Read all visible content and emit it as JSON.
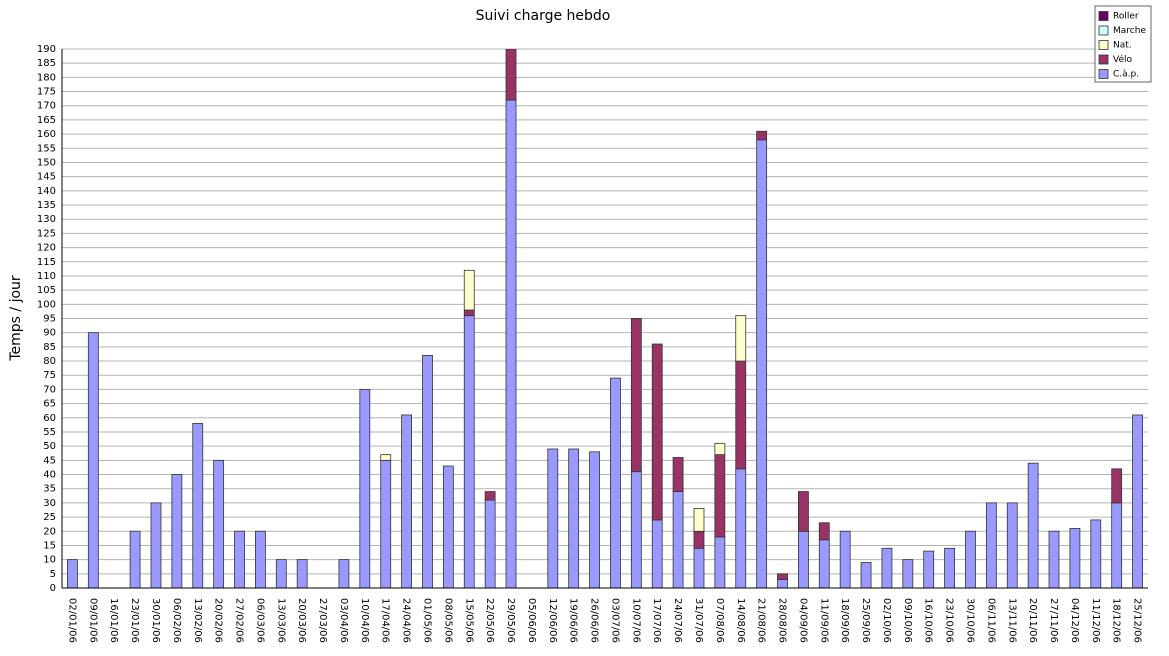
{
  "chart_data": {
    "type": "bar",
    "stacked": true,
    "title": "Suivi charge hebdo",
    "y_label": "Temps / jour",
    "categories": [
      "02/01/06",
      "09/01/06",
      "16/01/06",
      "23/01/06",
      "30/01/06",
      "06/02/06",
      "13/02/06",
      "20/02/06",
      "27/02/06",
      "06/03/06",
      "13/03/06",
      "20/03/06",
      "27/03/06",
      "03/04/06",
      "10/04/06",
      "17/04/06",
      "24/04/06",
      "01/05/06",
      "08/05/06",
      "15/05/06",
      "22/05/06",
      "29/05/06",
      "05/06/06",
      "12/06/06",
      "19/06/06",
      "26/06/06",
      "03/07/06",
      "10/07/06",
      "17/07/06",
      "24/07/06",
      "31/07/06",
      "07/08/06",
      "14/08/06",
      "21/08/06",
      "28/08/06",
      "04/09/06",
      "11/09/06",
      "18/09/06",
      "25/09/06",
      "02/10/06",
      "09/10/06",
      "16/10/06",
      "23/10/06",
      "30/10/06",
      "06/11/06",
      "13/11/06",
      "20/11/06",
      "27/11/06",
      "04/12/06",
      "11/12/06",
      "18/12/06",
      "25/12/06"
    ],
    "series": [
      {
        "name": "C.à.p.",
        "color": "#9999ff",
        "values": [
          10,
          90,
          0,
          20,
          30,
          40,
          58,
          45,
          20,
          20,
          10,
          10,
          0,
          10,
          70,
          45,
          61,
          82,
          43,
          96,
          31,
          172,
          0,
          49,
          49,
          48,
          74,
          41,
          24,
          34,
          14,
          18,
          42,
          158,
          3,
          20,
          17,
          20,
          9,
          14,
          10,
          13,
          14,
          20,
          30,
          30,
          44,
          20,
          21,
          24,
          30,
          61
        ]
      },
      {
        "name": "Vélo",
        "color": "#993366",
        "values": [
          0,
          0,
          0,
          0,
          0,
          0,
          0,
          0,
          0,
          0,
          0,
          0,
          0,
          0,
          0,
          0,
          0,
          0,
          0,
          2,
          3,
          18,
          0,
          0,
          0,
          0,
          0,
          54,
          62,
          12,
          6,
          29,
          38,
          3,
          2,
          14,
          6,
          0,
          0,
          0,
          0,
          0,
          0,
          0,
          0,
          0,
          0,
          0,
          0,
          0,
          12,
          0
        ]
      },
      {
        "name": "Nat.",
        "color": "#ffffcc",
        "values": [
          0,
          0,
          0,
          0,
          0,
          0,
          0,
          0,
          0,
          0,
          0,
          0,
          0,
          0,
          0,
          2,
          0,
          0,
          0,
          14,
          0,
          0,
          0,
          0,
          0,
          0,
          0,
          0,
          0,
          0,
          8,
          4,
          16,
          0,
          0,
          0,
          0,
          0,
          0,
          0,
          0,
          0,
          0,
          0,
          0,
          0,
          0,
          0,
          0,
          0,
          0,
          0
        ]
      },
      {
        "name": "Marche",
        "color": "#ccffff",
        "values": [
          0,
          0,
          0,
          0,
          0,
          0,
          0,
          0,
          0,
          0,
          0,
          0,
          0,
          0,
          0,
          0,
          0,
          0,
          0,
          0,
          0,
          0,
          0,
          0,
          0,
          0,
          0,
          0,
          0,
          0,
          0,
          0,
          0,
          0,
          0,
          0,
          0,
          0,
          0,
          0,
          0,
          0,
          0,
          0,
          0,
          0,
          0,
          0,
          0,
          0,
          0,
          0
        ]
      },
      {
        "name": "Roller",
        "color": "#660066",
        "values": [
          0,
          0,
          0,
          0,
          0,
          0,
          0,
          0,
          0,
          0,
          0,
          0,
          0,
          0,
          0,
          0,
          0,
          0,
          0,
          0,
          0,
          0,
          0,
          0,
          0,
          0,
          0,
          0,
          0,
          0,
          0,
          0,
          0,
          0,
          0,
          0,
          0,
          0,
          0,
          0,
          0,
          0,
          0,
          0,
          0,
          0,
          0,
          0,
          0,
          0,
          0,
          0
        ]
      }
    ],
    "ylim": [
      0,
      190
    ],
    "yticks": [
      0,
      5,
      10,
      15,
      20,
      25,
      30,
      35,
      40,
      45,
      50,
      55,
      60,
      65,
      70,
      75,
      80,
      85,
      90,
      95,
      100,
      105,
      110,
      115,
      120,
      125,
      130,
      135,
      140,
      145,
      150,
      155,
      160,
      165,
      170,
      175,
      180,
      185,
      190
    ],
    "grid": true,
    "legend": "top-right"
  }
}
